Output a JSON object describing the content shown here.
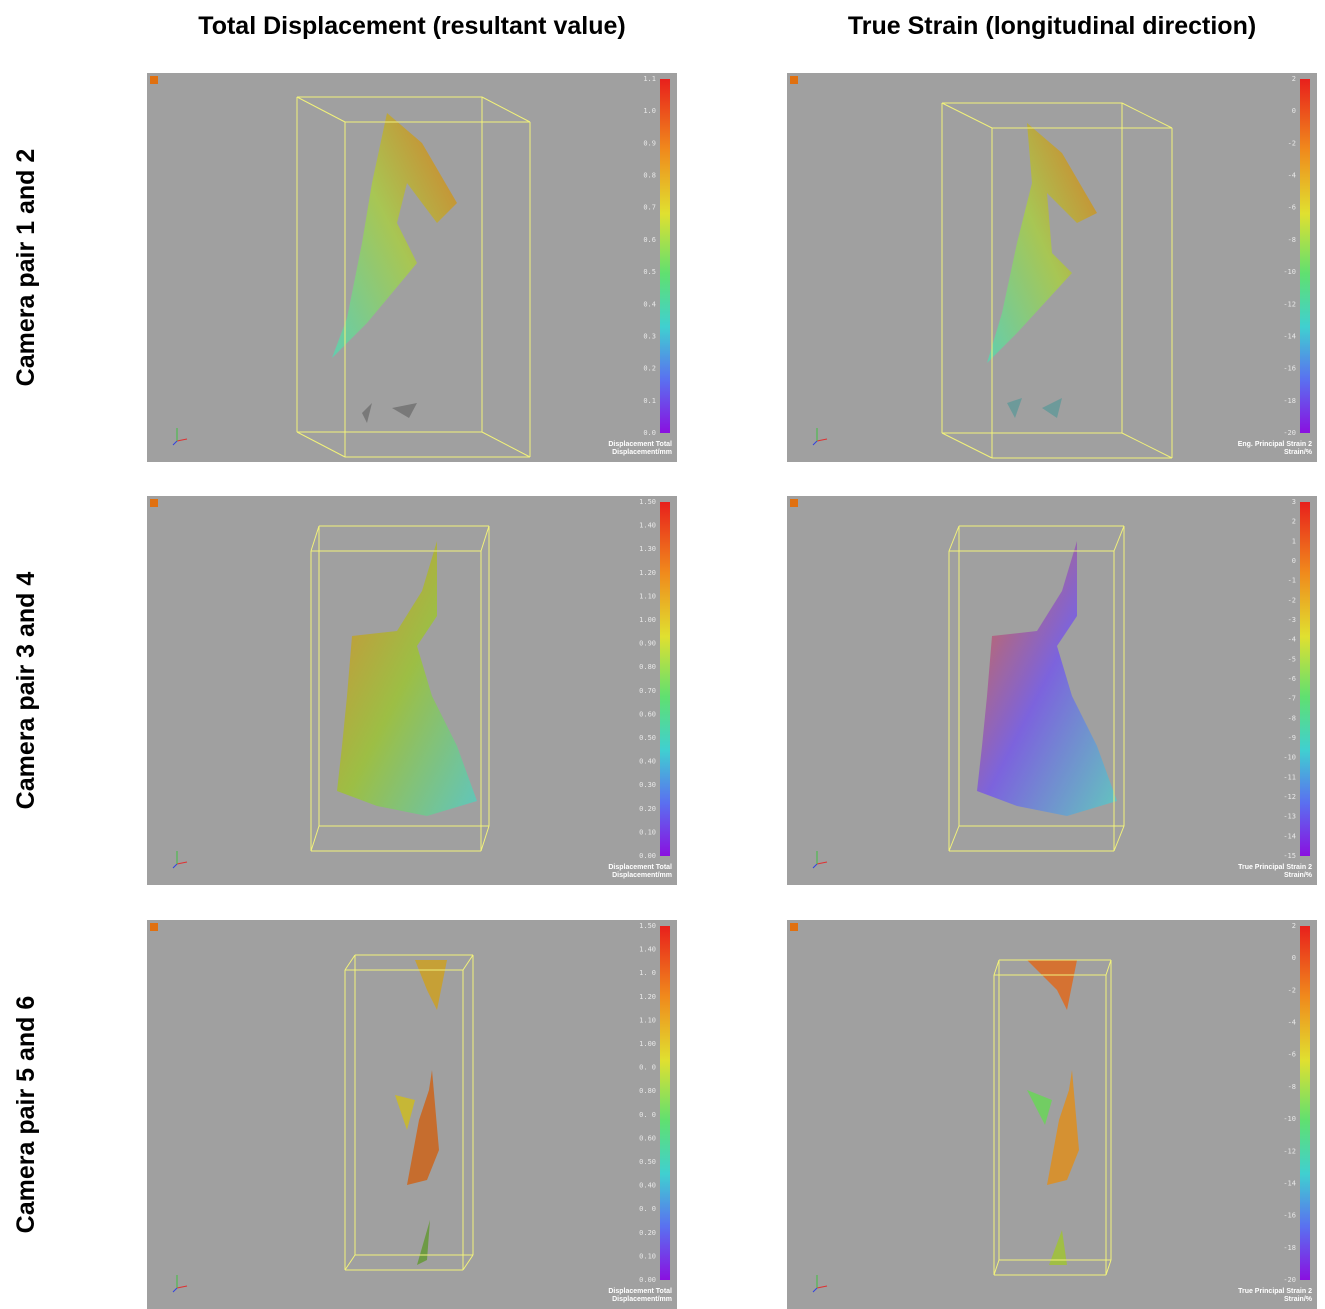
{
  "columns": [
    "Total Displacement (resultant value)",
    "True Strain (longitudinal direction)"
  ],
  "rows": [
    "Camera pair 1 and 2",
    "Camera pair 3 and 4",
    "Camera pair 5 and 6"
  ],
  "panels": [
    {
      "ticks": [
        "1.1",
        "1.0",
        "0.9",
        "0.8",
        "0.7",
        "0.6",
        "0.5",
        "0.4",
        "0.3",
        "0.2",
        "0.1",
        "0.0"
      ],
      "legend": [
        "Displacement Total",
        "Displacement/mm"
      ]
    },
    {
      "ticks": [
        "2",
        "0",
        "-2",
        "-4",
        "-6",
        "-8",
        "-10",
        "-12",
        "-14",
        "-16",
        "-18",
        "-20"
      ],
      "legend": [
        "Eng. Principal Strain 2",
        "Strain/%"
      ]
    },
    {
      "ticks": [
        "1.50",
        "1.40",
        "1.30",
        "1.20",
        "1.10",
        "1.00",
        "0.90",
        "0.80",
        "0.70",
        "0.60",
        "0.50",
        "0.40",
        "0.30",
        "0.20",
        "0.10",
        "0.00"
      ],
      "legend": [
        "Displacement Total",
        "Displacement/mm"
      ]
    },
    {
      "ticks": [
        "3",
        "2",
        "1",
        "0",
        "-1",
        "-2",
        "-3",
        "-4",
        "-5",
        "-6",
        "-7",
        "-8",
        "-9",
        "-10",
        "-11",
        "-12",
        "-13",
        "-14",
        "-15"
      ],
      "legend": [
        "True Principal Strain 2",
        "Strain/%"
      ]
    },
    {
      "ticks": [
        "1.50",
        "1.40",
        "1. 0",
        "1.20",
        "1.10",
        "1.00",
        "0. 0",
        "0.80",
        "0. 0",
        "0.60",
        "0.50",
        "0.40",
        "0. 0",
        "0.20",
        "0.10",
        "0.00"
      ],
      "legend": [
        "Displacement Total",
        "Displacement/mm"
      ]
    },
    {
      "ticks": [
        "2",
        "0",
        "-2",
        "-4",
        "-6",
        "-8",
        "-10",
        "-12",
        "-14",
        "-16",
        "-18",
        "-20"
      ],
      "legend": [
        "True Principal Strain 2",
        "Strain/%"
      ]
    }
  ]
}
